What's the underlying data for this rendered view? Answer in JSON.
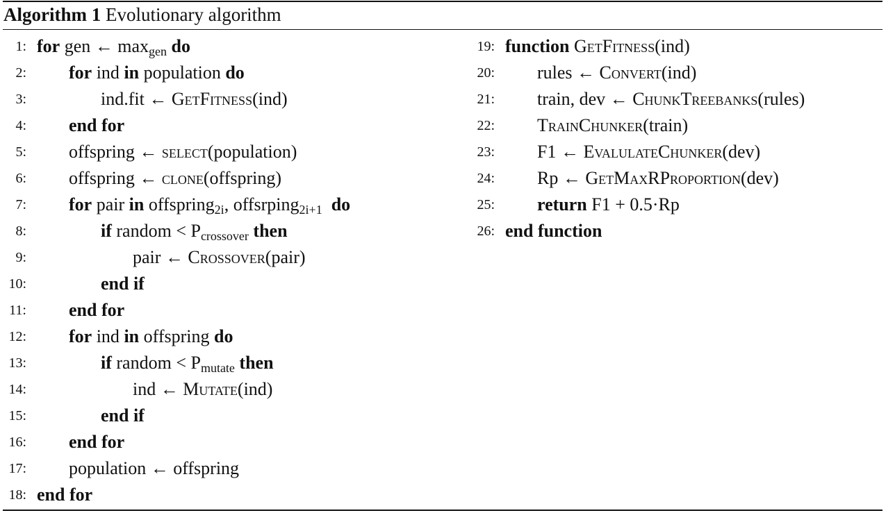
{
  "caption": {
    "label": "Algorithm 1",
    "title": "Evolutionary algorithm"
  },
  "left_lines": [
    {
      "no": "1:",
      "indent": 0,
      "parts": [
        {
          "t": "for",
          "s": "kw"
        },
        {
          "t": " gen ← max"
        },
        {
          "t": "gen",
          "s": "sub"
        },
        {
          "t": " "
        },
        {
          "t": "do",
          "s": "kw"
        }
      ]
    },
    {
      "no": "2:",
      "indent": 1,
      "parts": [
        {
          "t": "for",
          "s": "kw"
        },
        {
          "t": " ind "
        },
        {
          "t": "in",
          "s": "kw"
        },
        {
          "t": " population "
        },
        {
          "t": "do",
          "s": "kw"
        }
      ]
    },
    {
      "no": "3:",
      "indent": 2,
      "parts": [
        {
          "t": "ind.fit ← "
        },
        {
          "t": "GetFitness",
          "s": "sc"
        },
        {
          "t": "(ind)"
        }
      ]
    },
    {
      "no": "4:",
      "indent": 1,
      "parts": [
        {
          "t": "end for",
          "s": "kw"
        }
      ]
    },
    {
      "no": "5:",
      "indent": 1,
      "parts": [
        {
          "t": "offspring ← "
        },
        {
          "t": "select",
          "s": "sc"
        },
        {
          "t": "(population)"
        }
      ]
    },
    {
      "no": "6:",
      "indent": 1,
      "parts": [
        {
          "t": "offspring ← "
        },
        {
          "t": "clone",
          "s": "sc"
        },
        {
          "t": "(offspring)"
        }
      ]
    },
    {
      "no": "7:",
      "indent": 1,
      "parts": [
        {
          "t": "for",
          "s": "kw"
        },
        {
          "t": " pair "
        },
        {
          "t": "in",
          "s": "kw"
        },
        {
          "t": " offspring"
        },
        {
          "t": "2i",
          "s": "sub"
        },
        {
          "t": ", offsrping"
        },
        {
          "t": "2i+1",
          "s": "sub"
        },
        {
          "t": "  "
        },
        {
          "t": "do",
          "s": "kw"
        }
      ]
    },
    {
      "no": "8:",
      "indent": 2,
      "parts": [
        {
          "t": "if",
          "s": "kw"
        },
        {
          "t": " random < P"
        },
        {
          "t": "crossover",
          "s": "sub"
        },
        {
          "t": " "
        },
        {
          "t": "then",
          "s": "kw"
        }
      ]
    },
    {
      "no": "9:",
      "indent": 3,
      "parts": [
        {
          "t": "pair ← "
        },
        {
          "t": "Crossover",
          "s": "sc"
        },
        {
          "t": "(pair)"
        }
      ]
    },
    {
      "no": "10:",
      "indent": 2,
      "parts": [
        {
          "t": "end if",
          "s": "kw"
        }
      ]
    },
    {
      "no": "11:",
      "indent": 1,
      "parts": [
        {
          "t": "end for",
          "s": "kw"
        }
      ]
    },
    {
      "no": "12:",
      "indent": 1,
      "parts": [
        {
          "t": "for",
          "s": "kw"
        },
        {
          "t": " ind "
        },
        {
          "t": "in",
          "s": "kw"
        },
        {
          "t": " offspring "
        },
        {
          "t": "do",
          "s": "kw"
        }
      ]
    },
    {
      "no": "13:",
      "indent": 2,
      "parts": [
        {
          "t": "if",
          "s": "kw"
        },
        {
          "t": " random < P"
        },
        {
          "t": "mutate",
          "s": "sub"
        },
        {
          "t": " "
        },
        {
          "t": "then",
          "s": "kw"
        }
      ]
    },
    {
      "no": "14:",
      "indent": 3,
      "parts": [
        {
          "t": "ind ← "
        },
        {
          "t": "Mutate",
          "s": "sc"
        },
        {
          "t": "(ind)"
        }
      ]
    },
    {
      "no": "15:",
      "indent": 2,
      "parts": [
        {
          "t": "end if",
          "s": "kw"
        }
      ]
    },
    {
      "no": "16:",
      "indent": 1,
      "parts": [
        {
          "t": "end for",
          "s": "kw"
        }
      ]
    },
    {
      "no": "17:",
      "indent": 1,
      "parts": [
        {
          "t": "population ← offspring"
        }
      ]
    },
    {
      "no": "18:",
      "indent": 0,
      "parts": [
        {
          "t": "end for",
          "s": "kw"
        }
      ]
    }
  ],
  "right_lines": [
    {
      "no": "19:",
      "indent": 0,
      "parts": [
        {
          "t": "function",
          "s": "kw"
        },
        {
          "t": " "
        },
        {
          "t": "GetFitness",
          "s": "sc"
        },
        {
          "t": "(ind)"
        }
      ]
    },
    {
      "no": "20:",
      "indent": 1,
      "parts": [
        {
          "t": "rules ← "
        },
        {
          "t": "Convert",
          "s": "sc"
        },
        {
          "t": "(ind)"
        }
      ]
    },
    {
      "no": "21:",
      "indent": 1,
      "parts": [
        {
          "t": "train, dev ← "
        },
        {
          "t": "ChunkTreebanks",
          "s": "sc"
        },
        {
          "t": "(rules)"
        }
      ]
    },
    {
      "no": "22:",
      "indent": 1,
      "parts": [
        {
          "t": "TrainChunker",
          "s": "sc"
        },
        {
          "t": "(train)"
        }
      ]
    },
    {
      "no": "23:",
      "indent": 1,
      "parts": [
        {
          "t": "F1 ← "
        },
        {
          "t": "EvalulateChunker",
          "s": "sc"
        },
        {
          "t": "(dev)"
        }
      ]
    },
    {
      "no": "24:",
      "indent": 1,
      "parts": [
        {
          "t": "Rp ← "
        },
        {
          "t": "GetMaxRProportion",
          "s": "sc"
        },
        {
          "t": "(dev)"
        }
      ]
    },
    {
      "no": "25:",
      "indent": 1,
      "parts": [
        {
          "t": "return",
          "s": "kw"
        },
        {
          "t": " F1 + 0.5·Rp"
        }
      ]
    },
    {
      "no": "26:",
      "indent": 0,
      "parts": [
        {
          "t": "end function",
          "s": "kw"
        }
      ]
    }
  ]
}
